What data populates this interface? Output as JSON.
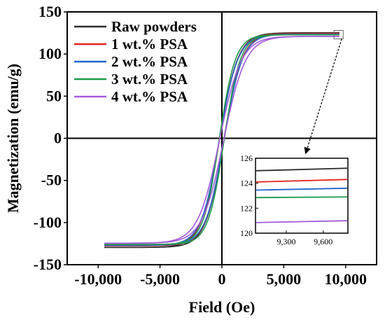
{
  "chart_data": {
    "type": "line",
    "title": "",
    "xlabel": "Field (Oe)",
    "ylabel": "Magnetization (emu/g)",
    "xlim": [
      -12500,
      12500
    ],
    "ylim": [
      -150,
      150
    ],
    "xticks": [
      -10000,
      -5000,
      0,
      5000,
      10000
    ],
    "xtick_labels": [
      "-10,000",
      "-5,000",
      "0",
      "5,000",
      "10,000"
    ],
    "yticks": [
      -150,
      -100,
      -50,
      0,
      50,
      100,
      150
    ],
    "ytick_labels": [
      "-150",
      "-100",
      "-50",
      "0",
      "50",
      "100",
      "150"
    ],
    "grid": false,
    "legend_position": "top-left",
    "axes_at_origin": true,
    "series": [
      {
        "name": "Raw powders",
        "color": "#2b2b2b",
        "ms": 125.2,
        "hc": 190,
        "k": 1500,
        "neg_ms": 129.5
      },
      {
        "name": "1 wt.% PSA",
        "color": "#e8211f",
        "ms": 124.3,
        "hc": 175,
        "k": 1480,
        "neg_ms": 127.5
      },
      {
        "name": "2 wt.% PSA",
        "color": "#2266cc",
        "ms": 123.6,
        "hc": 185,
        "k": 1490,
        "neg_ms": 127.0
      },
      {
        "name": "3 wt.% PSA",
        "color": "#1e9a4a",
        "ms": 122.9,
        "hc": 200,
        "k": 1300,
        "neg_ms": 126.0
      },
      {
        "name": "4 wt.% PSA",
        "color": "#a35bd9",
        "ms": 121.0,
        "hc": 170,
        "k": 1750,
        "neg_ms": 124.5
      }
    ],
    "inset": {
      "xlim": [
        9050,
        9800
      ],
      "ylim": [
        120,
        126
      ],
      "xticks": [
        9300,
        9600
      ],
      "xtick_labels": [
        "9,300",
        "9,600"
      ],
      "yticks": [
        120,
        122,
        124,
        126
      ],
      "ytick_labels": [
        "120",
        "122",
        "124",
        "126"
      ],
      "values": [
        {
          "name": "Raw powders",
          "y_start": 125.0,
          "y_end": 125.2
        },
        {
          "name": "1 wt.% PSA",
          "y_start": 124.1,
          "y_end": 124.3
        },
        {
          "name": "2 wt.% PSA",
          "y_start": 123.45,
          "y_end": 123.6
        },
        {
          "name": "3 wt.% PSA",
          "y_start": 122.85,
          "y_end": 122.9
        },
        {
          "name": "4 wt.% PSA",
          "y_start": 120.85,
          "y_end": 121.0
        }
      ]
    }
  }
}
